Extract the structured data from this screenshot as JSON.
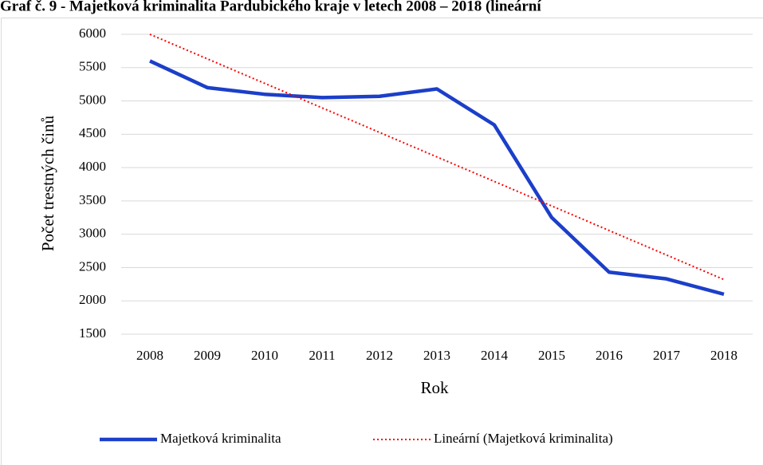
{
  "chart_data": {
    "type": "line",
    "title": "Graf č. 9 - Majetková kriminalita Pardubického kraje v letech 2008 – 2018 (lineární",
    "x_label": "Rok",
    "y_label": "Počet trestných činů",
    "categories": [
      "2008",
      "2009",
      "2010",
      "2011",
      "2012",
      "2013",
      "2014",
      "2015",
      "2016",
      "2017",
      "2018"
    ],
    "series": [
      {
        "name": "Majetková kriminalita",
        "color": "#1c3fc9",
        "style": "solid",
        "values": [
          5600,
          5200,
          5100,
          5050,
          5070,
          5180,
          4640,
          3250,
          2430,
          2330,
          2100
        ]
      },
      {
        "name": "Lineární (Majetková kriminalita)",
        "color": "#ff0000",
        "style": "dotted",
        "values": [
          6000,
          5632,
          5264,
          4896,
          4528,
          4160,
          3792,
          3424,
          3056,
          2688,
          2320
        ]
      }
    ],
    "ylim": [
      1500,
      6000
    ],
    "yticks": [
      1500,
      2000,
      2500,
      3000,
      3500,
      4000,
      4500,
      5000,
      5500,
      6000
    ],
    "grid": true,
    "legend": "bottom"
  }
}
